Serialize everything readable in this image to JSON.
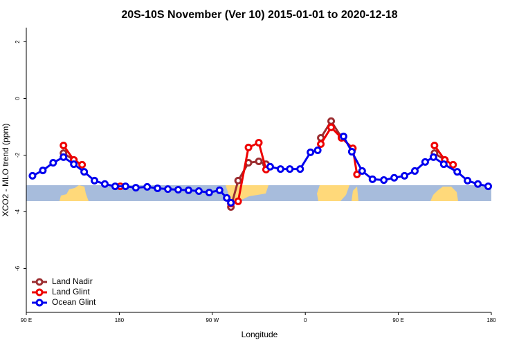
{
  "chart_data": {
    "type": "line",
    "title": "20S-10S November (Ver 10)   2015-01-01 to 2020-12-18",
    "xlabel": "Longitude",
    "ylabel": "XCO2 - MLO trend (ppm)",
    "xlim": [
      90,
      540
    ],
    "ylim": [
      -7.55,
      2.5
    ],
    "xticks": [
      {
        "value": 90,
        "label": "90 E"
      },
      180,
      {
        "value": 270,
        "label": "90 W"
      },
      {
        "value": 360,
        "label": "0"
      },
      {
        "value": 450,
        "label": "90 E"
      },
      {
        "value": 540,
        "label": "180"
      }
    ],
    "yticks": [
      2,
      0,
      -2,
      -4,
      -6
    ],
    "legend": "bottomleft",
    "series": [
      {
        "name": "Land Nadir",
        "color": "#9b2d30",
        "x": [
          126,
          136,
          200,
          288,
          295,
          305,
          315,
          322,
          350,
          375,
          385,
          395,
          450,
          485,
          495
        ],
        "values": [
          -1.93,
          -2.17,
          null,
          -3.83,
          -2.9,
          -2.27,
          -2.22,
          -2.32,
          null,
          -1.39,
          -0.8,
          -1.37,
          null,
          -1.93,
          -2.17
        ]
      },
      {
        "name": "Land Glint",
        "color": "#ee0000",
        "x": [
          126,
          136,
          144,
          160,
          181,
          200,
          288,
          295,
          305,
          315,
          322,
          350,
          375,
          385,
          395,
          406,
          410,
          450,
          485,
          495,
          503
        ],
        "values": [
          -1.66,
          -2.17,
          -2.34,
          null,
          -3.1,
          null,
          -3.71,
          -3.63,
          -1.73,
          -1.56,
          -2.51,
          null,
          -1.61,
          -1.02,
          -1.39,
          -1.76,
          -2.68,
          null,
          -1.66,
          -2.17,
          -2.34
        ]
      },
      {
        "name": "Ocean Glint",
        "color": "#0000ee",
        "x": [
          96,
          106,
          116,
          126,
          136,
          146,
          156,
          166,
          176,
          186,
          196,
          207,
          217,
          227,
          237,
          247,
          257,
          267,
          277,
          284,
          288,
          310,
          326,
          336,
          345,
          355,
          365,
          372,
          385,
          397,
          405,
          415,
          425,
          436,
          446,
          456,
          466,
          476,
          484,
          494,
          507,
          517,
          527,
          537
        ],
        "values": [
          -2.73,
          -2.54,
          -2.27,
          -2.07,
          -2.32,
          -2.59,
          -2.9,
          -3.02,
          -3.1,
          -3.1,
          -3.15,
          -3.12,
          -3.17,
          -3.2,
          -3.22,
          -3.24,
          -3.27,
          -3.32,
          -3.24,
          -3.51,
          -3.68,
          null,
          -2.41,
          -2.49,
          -2.49,
          -2.49,
          -1.9,
          -1.83,
          null,
          -1.34,
          -1.88,
          -2.56,
          -2.85,
          -2.88,
          -2.8,
          -2.73,
          -2.56,
          -2.24,
          -2.07,
          -2.32,
          -2.59,
          -2.9,
          -3.02,
          -3.1
        ]
      }
    ]
  }
}
